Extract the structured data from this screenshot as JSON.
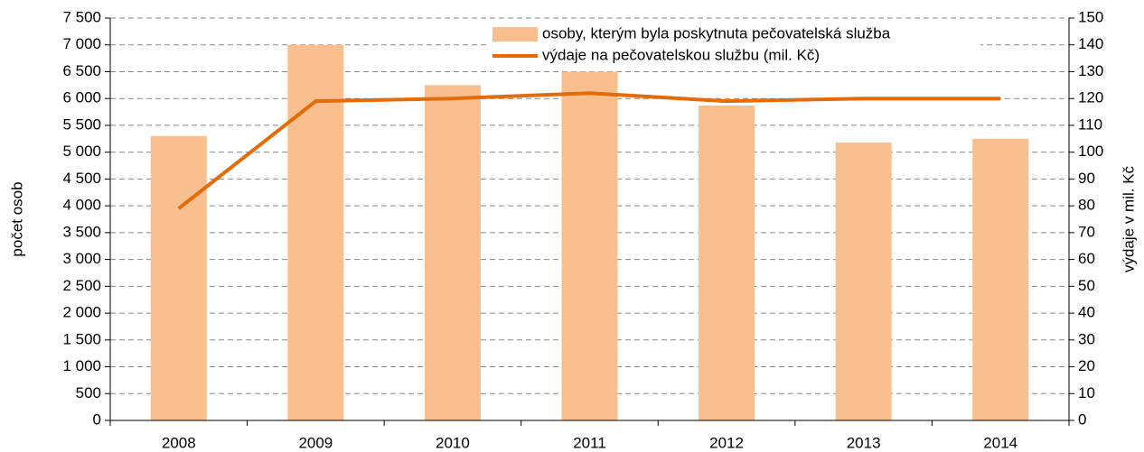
{
  "chart_data": {
    "type": "bar",
    "categories": [
      "2008",
      "2009",
      "2010",
      "2011",
      "2012",
      "2013",
      "2014"
    ],
    "series": [
      {
        "name": "osoby, kterým byla poskytnuta pečovatelská služba",
        "type": "bar",
        "color": "#f9bf8f",
        "values": [
          5300,
          7000,
          6250,
          6500,
          5870,
          5180,
          5250
        ]
      },
      {
        "name": "výdaje na pečovatelskou službu (mil. Kč)",
        "type": "line",
        "axis": "y2",
        "color": "#e36c09",
        "values": [
          79,
          119,
          120,
          122,
          119,
          120,
          120
        ]
      }
    ],
    "ylabel": "počet osob",
    "y2label": "výdaje v mil. Kč",
    "ylim": [
      0,
      7500
    ],
    "yticks": [
      0,
      500,
      {
        "value": 1000,
        "label": "1 000"
      },
      {
        "value": 1500,
        "label": "1 500"
      },
      {
        "value": 2000,
        "label": "2 000"
      },
      {
        "value": 2500,
        "label": "2 500"
      },
      {
        "value": 3000,
        "label": "3 000"
      },
      {
        "value": 3500,
        "label": "3 500"
      },
      {
        "value": 4000,
        "label": "4 000"
      },
      {
        "value": 4500,
        "label": "4 500"
      },
      {
        "value": 5000,
        "label": "5 000"
      },
      {
        "value": 5500,
        "label": "5 500"
      },
      {
        "value": 6000,
        "label": "6 000"
      },
      {
        "value": 6500,
        "label": "6 500"
      },
      {
        "value": 7000,
        "label": "7 000"
      },
      {
        "value": 7500,
        "label": "7 500"
      }
    ],
    "y2lim": [
      0,
      150
    ],
    "y2ticks": [
      0,
      10,
      20,
      30,
      40,
      50,
      60,
      70,
      80,
      90,
      100,
      110,
      120,
      130,
      140,
      150
    ],
    "grid": true,
    "legend": "top"
  }
}
